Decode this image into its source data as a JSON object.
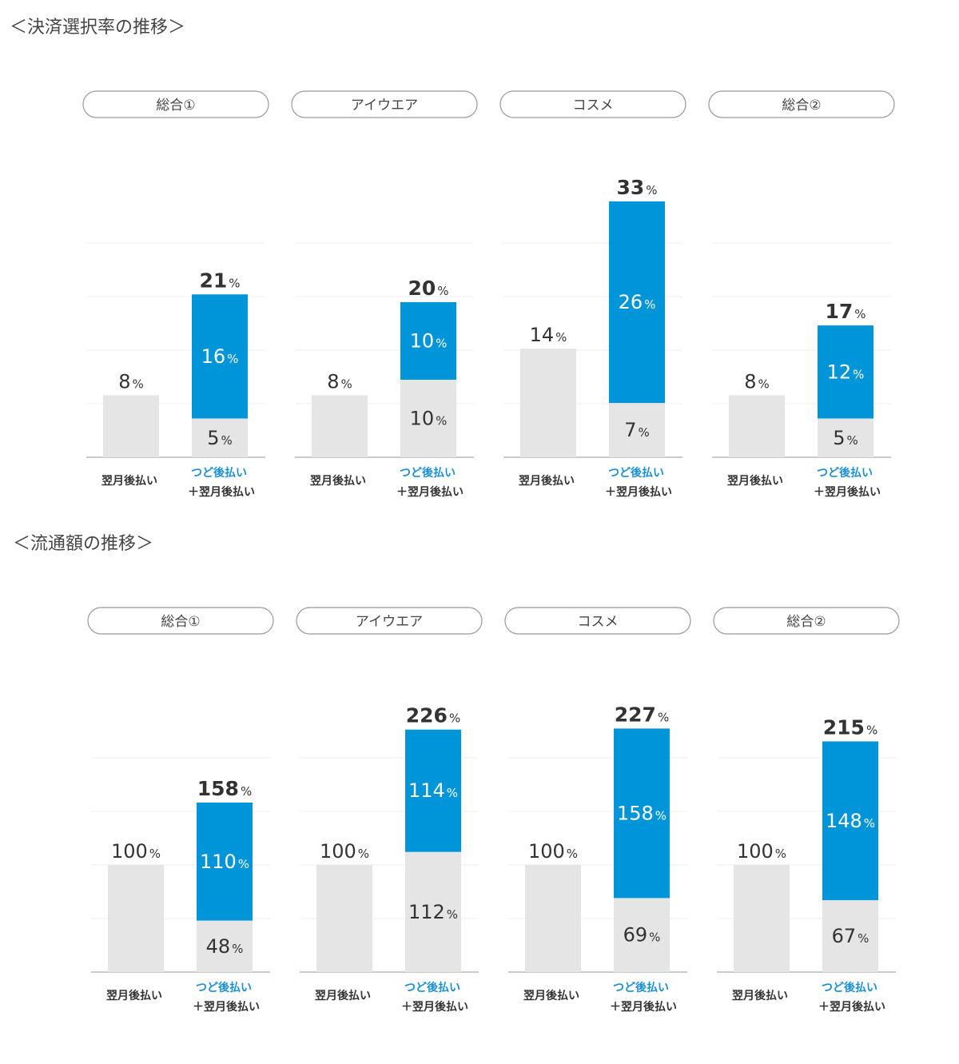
{
  "labels": {
    "bar1": "翌月後払い",
    "bar2_line1": "つど後払い",
    "bar2_line2": "＋翌月後払い",
    "unit": "%"
  },
  "colors": {
    "base": "#e5e5e5",
    "accent": "#0095d9",
    "grid": "#ececec",
    "axis": "#aaaaaa",
    "pill_border": "#999999",
    "accent_text": "#1a8fd6"
  },
  "chart_data": [
    {
      "type": "bar",
      "title": "＜決済選択率の推移＞",
      "panels": [
        {
          "label": "総合①",
          "single": 8,
          "stack_bottom": 5,
          "stack_top": 16,
          "total": 21
        },
        {
          "label": "アイウエア",
          "single": 8,
          "stack_bottom": 10,
          "stack_top": 10,
          "total": 20
        },
        {
          "label": "コスメ",
          "single": 14,
          "stack_bottom": 7,
          "stack_top": 26,
          "total": 33
        },
        {
          "label": "総合②",
          "single": 8,
          "stack_bottom": 5,
          "stack_top": 12,
          "total": 17
        }
      ]
    },
    {
      "type": "bar",
      "title": "＜流通額の推移＞",
      "panels": [
        {
          "label": "総合①",
          "single": 100,
          "stack_bottom": 48,
          "stack_top": 110,
          "total": 158
        },
        {
          "label": "アイウエア",
          "single": 100,
          "stack_bottom": 112,
          "stack_top": 114,
          "total": 226
        },
        {
          "label": "コスメ",
          "single": 100,
          "stack_bottom": 69,
          "stack_top": 158,
          "total": 227
        },
        {
          "label": "総合②",
          "single": 100,
          "stack_bottom": 67,
          "stack_top": 148,
          "total": 215
        }
      ]
    }
  ]
}
